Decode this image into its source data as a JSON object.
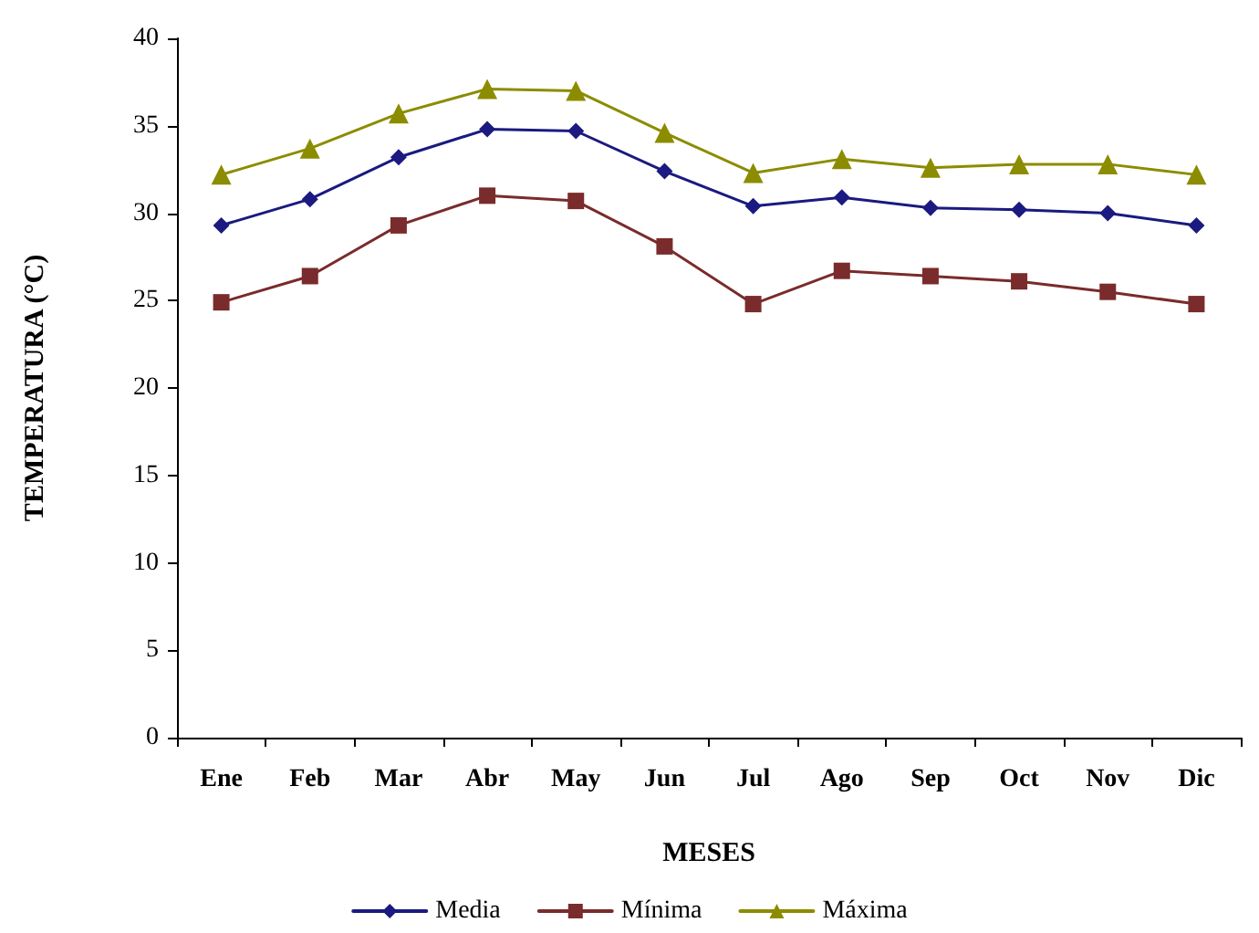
{
  "chart_data": {
    "type": "line",
    "xlabel": "MESES",
    "ylabel": "TEMPERATURA (°C)",
    "categories": [
      "Ene",
      "Feb",
      "Mar",
      "Abr",
      "May",
      "Jun",
      "Jul",
      "Ago",
      "Sep",
      "Oct",
      "Nov",
      "Dic"
    ],
    "series": [
      {
        "name": "Media",
        "color": "#1a1a80",
        "marker": "diamond",
        "values": [
          29.3,
          30.8,
          33.2,
          34.8,
          34.7,
          32.4,
          30.4,
          30.9,
          30.3,
          30.2,
          30.0,
          29.3
        ]
      },
      {
        "name": "Mínima",
        "color": "#7a2b2b",
        "marker": "square",
        "values": [
          24.9,
          26.4,
          29.3,
          31.0,
          30.7,
          28.1,
          24.8,
          26.7,
          26.4,
          26.1,
          25.5,
          24.8
        ]
      },
      {
        "name": "Máxima",
        "color": "#8c8c00",
        "marker": "triangle",
        "values": [
          32.2,
          33.7,
          35.7,
          37.1,
          37.0,
          34.6,
          32.3,
          33.1,
          32.6,
          32.8,
          32.8,
          32.2
        ]
      }
    ],
    "ylim": [
      0,
      40
    ],
    "yticks": [
      0,
      5,
      10,
      15,
      20,
      25,
      30,
      35,
      40
    ],
    "grid": false,
    "legend": "bottom",
    "line_style": "solid"
  }
}
